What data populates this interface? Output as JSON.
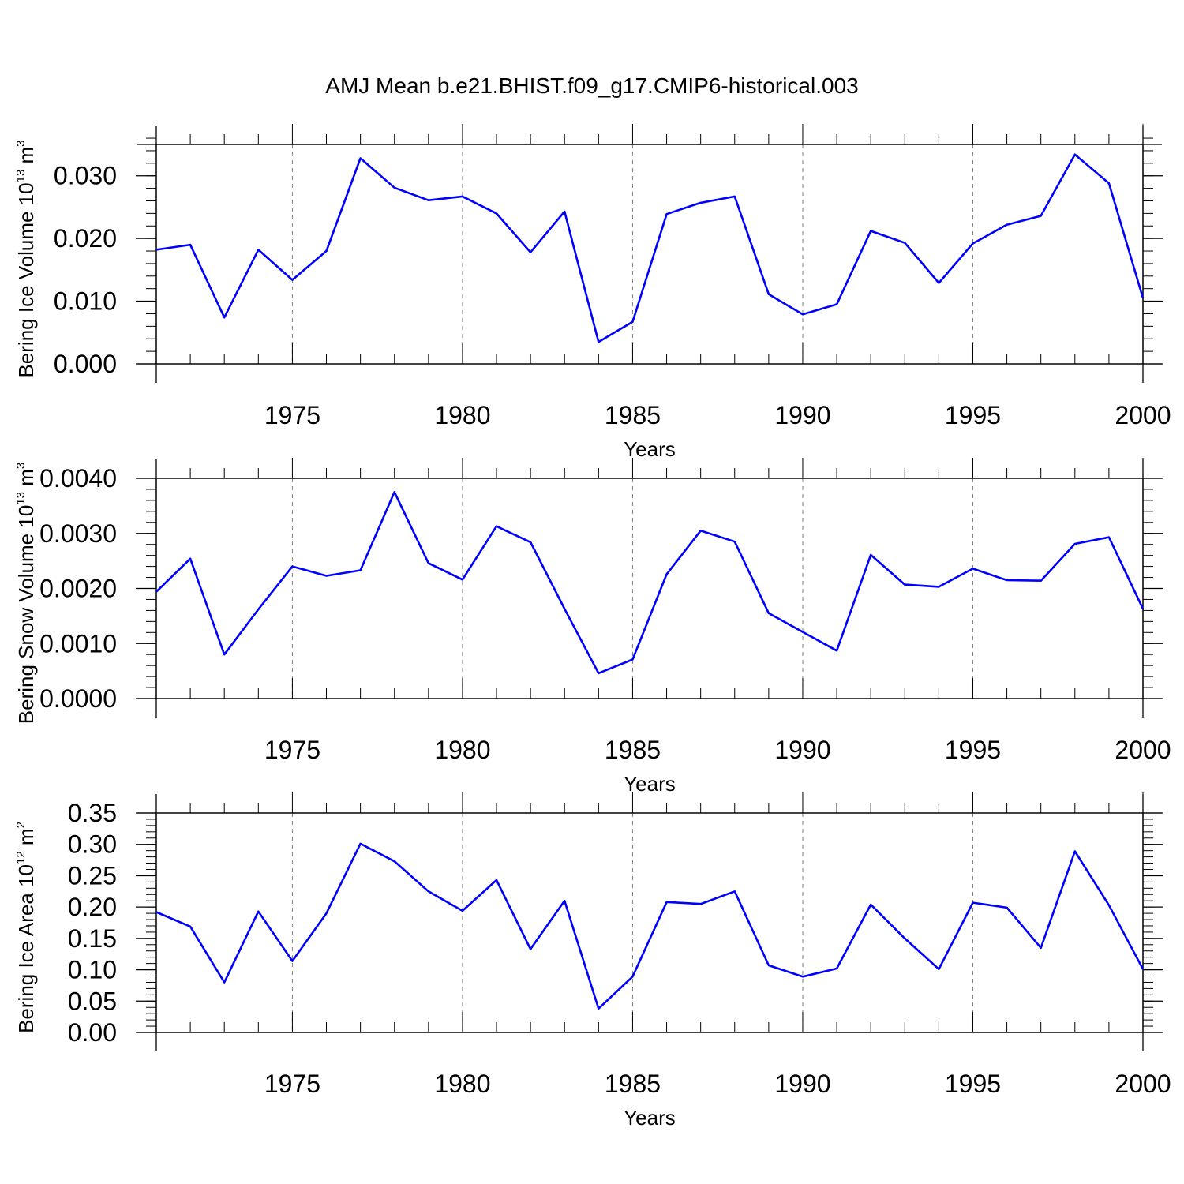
{
  "title": "AMJ Mean b.e21.BHIST.f09_g17.CMIP6-historical.003",
  "colors": {
    "series": "#0000ff",
    "axis": "#000000",
    "grid": "#808080"
  },
  "chart_data": [
    {
      "type": "line",
      "ylabel": {
        "text": "Bering Ice Volume 10",
        "exp": "13",
        "unit": " m",
        "unit_exp": "3"
      },
      "xlabel": "Years",
      "xlim": [
        1971,
        2000
      ],
      "ylim": [
        0,
        0.035
      ],
      "yticks": [
        0,
        0.01,
        0.02,
        0.03
      ],
      "ytick_labels": [
        "0.000",
        "0.010",
        "0.020",
        "0.030"
      ],
      "yminor_step": 0.002,
      "xticks": [
        1975,
        1980,
        1985,
        1990,
        1995,
        2000
      ],
      "xtick_labels": [
        "1975",
        "1980",
        "1985",
        "1990",
        "1995",
        "2000"
      ],
      "grid_x": [
        1975,
        1980,
        1985,
        1990,
        1995
      ],
      "series": [
        {
          "name": "Bering Ice Volume",
          "x": [
            1971,
            1972,
            1973,
            1974,
            1975,
            1976,
            1977,
            1978,
            1979,
            1980,
            1981,
            1982,
            1983,
            1984,
            1985,
            1986,
            1987,
            1988,
            1989,
            1990,
            1991,
            1992,
            1993,
            1994,
            1995,
            1996,
            1997,
            1998,
            1999,
            2000
          ],
          "values": [
            0.0182,
            0.019,
            0.0074,
            0.0182,
            0.0134,
            0.018,
            0.0328,
            0.0281,
            0.0261,
            0.0267,
            0.024,
            0.0178,
            0.0243,
            0.0035,
            0.0067,
            0.0239,
            0.0257,
            0.0267,
            0.0111,
            0.0079,
            0.0095,
            0.0212,
            0.0193,
            0.0129,
            0.0192,
            0.0222,
            0.0236,
            0.0334,
            0.0288,
            0.0105
          ]
        }
      ]
    },
    {
      "type": "line",
      "ylabel": {
        "text": "Bering Snow Volume 10",
        "exp": "13",
        "unit": " m",
        "unit_exp": "3"
      },
      "xlabel": "Years",
      "xlim": [
        1971,
        2000
      ],
      "ylim": [
        0,
        0.004
      ],
      "yticks": [
        0,
        0.001,
        0.002,
        0.003,
        0.004
      ],
      "ytick_labels": [
        "0.0000",
        "0.0010",
        "0.0020",
        "0.0030",
        "0.0040"
      ],
      "yminor_step": 0.0002,
      "xticks": [
        1975,
        1980,
        1985,
        1990,
        1995,
        2000
      ],
      "xtick_labels": [
        "1975",
        "1980",
        "1985",
        "1990",
        "1995",
        "2000"
      ],
      "grid_x": [
        1975,
        1980,
        1985,
        1990,
        1995
      ],
      "series": [
        {
          "name": "Bering Snow Volume",
          "x": [
            1971,
            1972,
            1973,
            1974,
            1975,
            1976,
            1977,
            1978,
            1979,
            1980,
            1981,
            1982,
            1983,
            1984,
            1985,
            1986,
            1987,
            1988,
            1989,
            1990,
            1991,
            1992,
            1993,
            1994,
            1995,
            1996,
            1997,
            1998,
            1999,
            2000
          ],
          "values": [
            0.00194,
            0.00254,
            0.0008,
            0.00162,
            0.0024,
            0.00223,
            0.00233,
            0.00375,
            0.00246,
            0.00216,
            0.00313,
            0.00284,
            0.00163,
            0.00046,
            0.00071,
            0.00226,
            0.00305,
            0.00285,
            0.00155,
            0.00121,
            0.00087,
            0.00261,
            0.00207,
            0.00203,
            0.00236,
            0.00215,
            0.00214,
            0.00281,
            0.00293,
            0.00163
          ]
        }
      ]
    },
    {
      "type": "line",
      "ylabel": {
        "text": "Bering Ice Area 10",
        "exp": "12",
        "unit": " m",
        "unit_exp": "2"
      },
      "xlabel": "Years",
      "xlim": [
        1971,
        2000
      ],
      "ylim": [
        0,
        0.35
      ],
      "yticks": [
        0,
        0.05,
        0.1,
        0.15,
        0.2,
        0.25,
        0.3,
        0.35
      ],
      "ytick_labels": [
        "0.00",
        "0.05",
        "0.10",
        "0.15",
        "0.20",
        "0.25",
        "0.30",
        "0.35"
      ],
      "yminor_step": 0.01,
      "xticks": [
        1975,
        1980,
        1985,
        1990,
        1995,
        2000
      ],
      "xtick_labels": [
        "1975",
        "1980",
        "1985",
        "1990",
        "1995",
        "2000"
      ],
      "grid_x": [
        1975,
        1980,
        1985,
        1990,
        1995
      ],
      "series": [
        {
          "name": "Bering Ice Area",
          "x": [
            1971,
            1972,
            1973,
            1974,
            1975,
            1976,
            1977,
            1978,
            1979,
            1980,
            1981,
            1982,
            1983,
            1984,
            1985,
            1986,
            1987,
            1988,
            1989,
            1990,
            1991,
            1992,
            1993,
            1994,
            1995,
            1996,
            1997,
            1998,
            1999,
            2000
          ],
          "values": [
            0.192,
            0.169,
            0.08,
            0.193,
            0.114,
            0.19,
            0.301,
            0.273,
            0.225,
            0.194,
            0.243,
            0.133,
            0.21,
            0.038,
            0.089,
            0.208,
            0.205,
            0.225,
            0.107,
            0.089,
            0.102,
            0.204,
            0.15,
            0.101,
            0.207,
            0.199,
            0.135,
            0.289,
            0.203,
            0.101
          ]
        }
      ]
    }
  ]
}
